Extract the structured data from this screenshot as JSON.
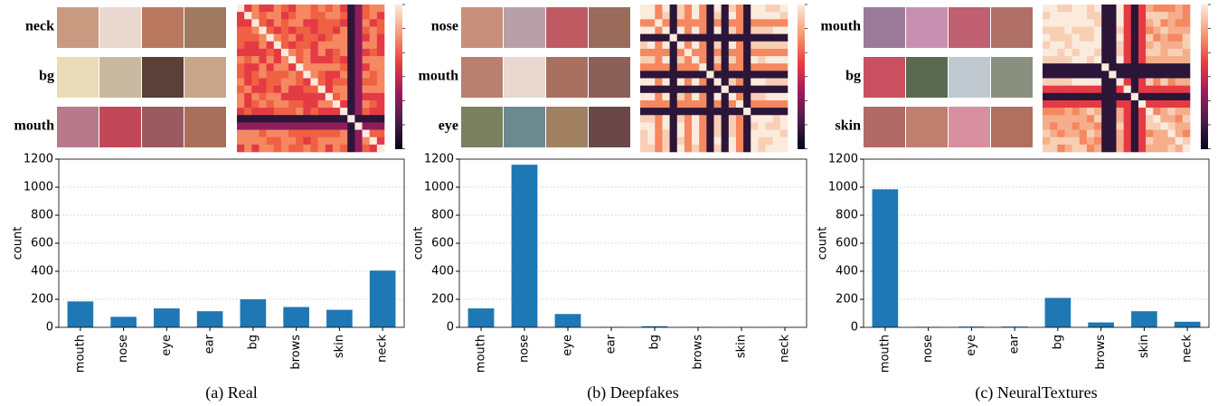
{
  "chart_data": [
    {
      "type": "bar",
      "caption": "(a) Real",
      "ylabel": "count",
      "patch_labels": [
        "neck",
        "bg",
        "mouth"
      ],
      "categories": [
        "mouth",
        "nose",
        "eye",
        "ear",
        "bg",
        "brows",
        "skin",
        "neck"
      ],
      "values": [
        185,
        75,
        135,
        115,
        200,
        145,
        125,
        405
      ],
      "color": "#1f77b4",
      "ylim": [
        0,
        1200
      ],
      "yticks": [
        0,
        200,
        400,
        600,
        800,
        1000,
        1200
      ],
      "grid": true
    },
    {
      "type": "bar",
      "caption": "(b) Deepfakes",
      "ylabel": "count",
      "patch_labels": [
        "nose",
        "mouth",
        "eye"
      ],
      "categories": [
        "mouth",
        "nose",
        "eye",
        "ear",
        "bg",
        "brows",
        "skin",
        "neck"
      ],
      "values": [
        135,
        1160,
        95,
        2,
        8,
        2,
        1,
        1
      ],
      "color": "#1f77b4",
      "ylim": [
        0,
        1200
      ],
      "yticks": [
        0,
        200,
        400,
        600,
        800,
        1000,
        1200
      ],
      "grid": true
    },
    {
      "type": "bar",
      "caption": "(c) NeuralTextures",
      "ylabel": "count",
      "patch_labels": [
        "mouth",
        "bg",
        "skin"
      ],
      "categories": [
        "mouth",
        "nose",
        "eye",
        "ear",
        "bg",
        "brows",
        "skin",
        "neck"
      ],
      "values": [
        985,
        3,
        5,
        5,
        210,
        35,
        115,
        40
      ],
      "color": "#1f77b4",
      "ylim": [
        0,
        1200
      ],
      "yticks": [
        0,
        200,
        400,
        600,
        800,
        1000,
        1200
      ],
      "grid": true
    }
  ]
}
